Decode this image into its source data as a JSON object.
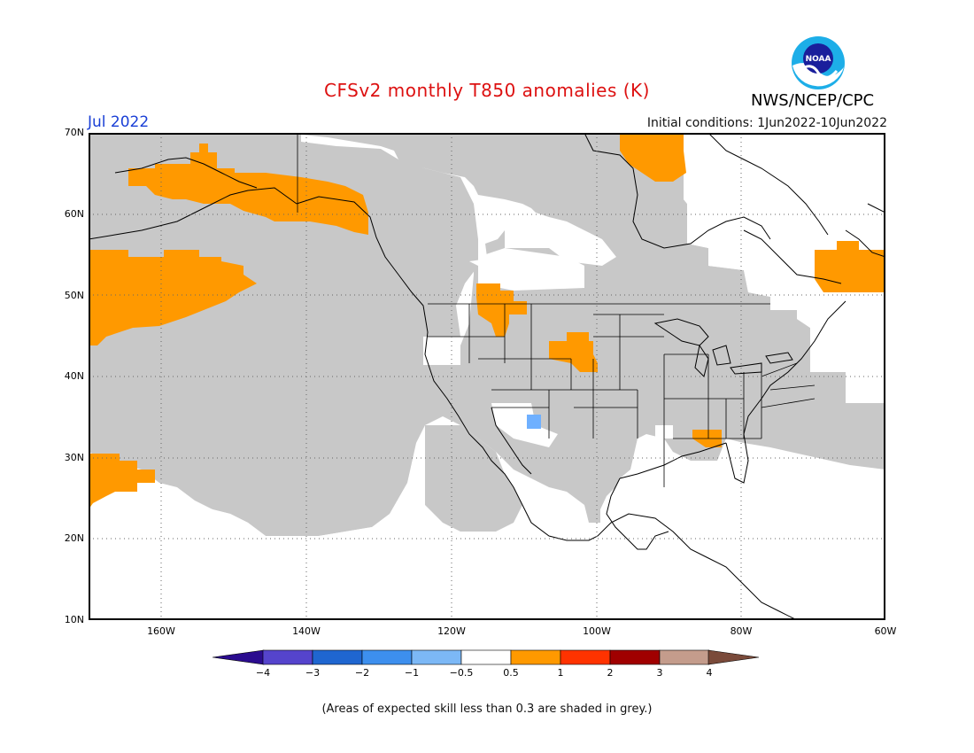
{
  "title": "CFSv2 monthly T850 anomalies (K)",
  "organization": "NWS/NCEP/CPC",
  "logo_text": "NOAA",
  "valid_month": "Jul 2022",
  "initial_conditions": "Initial conditions: 1Jun2022-10Jun2022",
  "latitude_labels": [
    "70N",
    "60N",
    "50N",
    "40N",
    "30N",
    "20N",
    "10N"
  ],
  "longitude_labels": [
    "160W",
    "140W",
    "120W",
    "100W",
    "80W",
    "60W"
  ],
  "colorbar": {
    "labels": [
      "−4",
      "−3",
      "−2",
      "−1",
      "−0.5",
      "0.5",
      "1",
      "2",
      "3",
      "4"
    ],
    "colors": [
      "#2b0c8f",
      "#5544cc",
      "#1f66d0",
      "#3d8fee",
      "#7cb8f6",
      "#ffffff",
      "#ff9900",
      "#ff3300",
      "#a00000",
      "#c49c8c",
      "#7a4a3a"
    ]
  },
  "colors": {
    "low_skill_grey": "#c8c8c8",
    "warm_anomaly": "#ff9900",
    "cool_anomaly": "#6fb0ff",
    "title_red": "#dd1111",
    "month_blue": "#1a3fd6"
  },
  "note": "(Areas of expected skill less than 0.3 are shaded in grey.)"
}
